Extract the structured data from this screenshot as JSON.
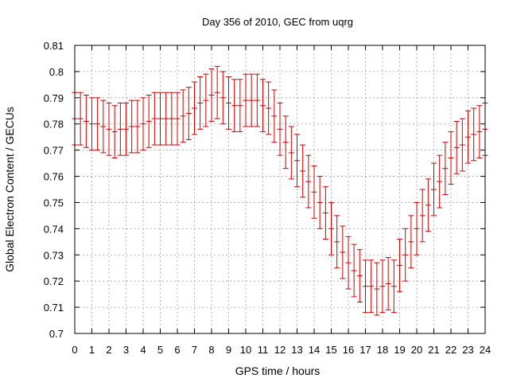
{
  "chart_data": {
    "type": "scatter",
    "title": "Day 356 of 2010, GEC from uqrg",
    "xlabel": "GPS time / hours",
    "ylabel": "Global Electron Content / GECUs",
    "xlim": [
      0,
      24
    ],
    "ylim": [
      0.7,
      0.81
    ],
    "x_ticks": [
      0,
      1,
      2,
      3,
      4,
      5,
      6,
      7,
      8,
      9,
      10,
      11,
      12,
      13,
      14,
      15,
      16,
      17,
      18,
      19,
      20,
      21,
      22,
      23,
      24
    ],
    "y_ticks": [
      0.7,
      0.71,
      0.72,
      0.73,
      0.74,
      0.75,
      0.76,
      0.77,
      0.78,
      0.79,
      0.8,
      0.81
    ],
    "y_tick_labels": [
      "0.7",
      "0.71",
      "0.72",
      "0.73",
      "0.74",
      "0.75",
      "0.76",
      "0.77",
      "0.78",
      "0.79",
      "0.8",
      "0.81"
    ],
    "grid": true,
    "error_bar_halfwidth": 0.01,
    "series_color": "#cc0000",
    "series": [
      {
        "x": [
          0,
          0.333,
          0.667,
          1,
          1.333,
          1.667,
          2,
          2.333,
          2.667,
          3,
          3.333,
          3.667,
          4,
          4.333,
          4.667,
          5,
          5.333,
          5.667,
          6,
          6.333,
          6.667,
          7,
          7.333,
          7.667,
          8,
          8.333,
          8.667,
          9,
          9.333,
          9.667,
          10,
          10.333,
          10.667,
          11,
          11.333,
          11.667,
          12,
          12.333,
          12.667,
          13,
          13.333,
          13.667,
          14,
          14.333,
          14.667,
          15,
          15.333,
          15.667,
          16,
          16.333,
          16.667,
          17,
          17.333,
          17.667,
          18,
          18.333,
          18.667,
          19,
          19.333,
          19.667,
          20,
          20.333,
          20.667,
          21,
          21.333,
          21.667,
          22,
          22.333,
          22.667,
          23,
          23.333,
          23.667,
          24
        ],
        "y": [
          0.782,
          0.782,
          0.781,
          0.78,
          0.78,
          0.779,
          0.778,
          0.777,
          0.778,
          0.778,
          0.779,
          0.779,
          0.78,
          0.781,
          0.782,
          0.782,
          0.782,
          0.782,
          0.782,
          0.783,
          0.784,
          0.786,
          0.788,
          0.789,
          0.791,
          0.792,
          0.79,
          0.788,
          0.787,
          0.787,
          0.789,
          0.789,
          0.789,
          0.787,
          0.786,
          0.783,
          0.778,
          0.773,
          0.769,
          0.766,
          0.762,
          0.758,
          0.754,
          0.75,
          0.746,
          0.74,
          0.735,
          0.731,
          0.727,
          0.724,
          0.722,
          0.718,
          0.718,
          0.717,
          0.718,
          0.719,
          0.718,
          0.726,
          0.73,
          0.735,
          0.74,
          0.745,
          0.749,
          0.755,
          0.758,
          0.763,
          0.767,
          0.771,
          0.772,
          0.775,
          0.776,
          0.777,
          0.778
        ]
      }
    ]
  }
}
